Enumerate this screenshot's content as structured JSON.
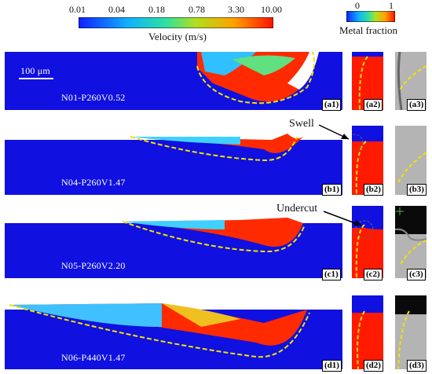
{
  "velocity_colorbar": {
    "ticks": [
      "0.01",
      "0.04",
      "0.18",
      "0.78",
      "3.30",
      "10.00"
    ],
    "title": "Velocity (m/s)"
  },
  "metal_colorbar": {
    "ticks": [
      "0",
      "1"
    ],
    "title": "Metal fraction"
  },
  "scale_bar": "100 μm",
  "rows": [
    {
      "run": "N01-P260V0.52",
      "tags": [
        "(a1)",
        "(a2)",
        "(a3)"
      ]
    },
    {
      "run": "N04-P260V1.47",
      "tags": [
        "(b1)",
        "(b2)",
        "(b3)"
      ]
    },
    {
      "run": "N05-P260V2.20",
      "tags": [
        "(c1)",
        "(c2)",
        "(c3)"
      ]
    },
    {
      "run": "N06-P440V1.47",
      "tags": [
        "(d1)",
        "(d2)",
        "(d3)"
      ]
    }
  ],
  "annotations": {
    "swell": "Swell",
    "undercut": "Undercut"
  },
  "colors": {
    "substrate": "#1010e0",
    "melt": "#ff1a00",
    "boundary": "#f2e200",
    "sem": "#9a9a9a"
  }
}
